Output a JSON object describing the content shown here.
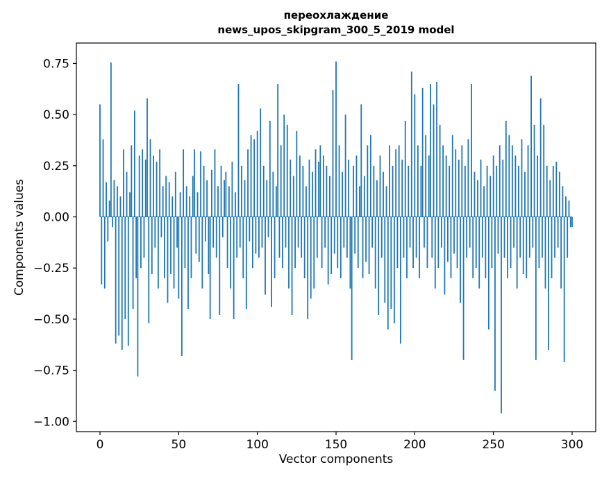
{
  "figure": {
    "title_line1": "переохлаждение",
    "title_line2": "news_upos_skipgram_300_5_2019 model",
    "xlabel": "Vector components",
    "ylabel": "Components values"
  },
  "chart_data": {
    "type": "bar",
    "title": "переохлаждение\nnews_upos_skipgram_300_5_2019 model",
    "xlabel": "Vector components",
    "ylabel": "Components values",
    "legend": "none",
    "grid": false,
    "bar_color": "#1f77b4",
    "axis_color": "#000000",
    "x_start": 0,
    "x_step": 1,
    "xlim": [
      -15,
      315
    ],
    "ylim": [
      -1.05,
      0.85
    ],
    "x_ticks": [
      0,
      50,
      100,
      150,
      200,
      250,
      300
    ],
    "y_ticks": [
      0.75,
      0.5,
      0.25,
      0,
      -0.25,
      -0.5,
      -0.75,
      -1.0
    ],
    "x_tick_labels": [
      "0",
      "50",
      "100",
      "150",
      "200",
      "250",
      "300"
    ],
    "y_tick_labels": [
      "0.75",
      "0.50",
      "0.25",
      "0.00",
      "−0.25",
      "−0.50",
      "−0.75",
      "−1.00"
    ],
    "values": [
      0.55,
      -0.33,
      0.38,
      -0.35,
      0.17,
      -0.12,
      0.08,
      0.755,
      -0.05,
      0.18,
      -0.62,
      0.15,
      -0.58,
      0.1,
      -0.65,
      0.33,
      -0.5,
      0.22,
      -0.63,
      0.12,
      0.35,
      -0.45,
      0.52,
      -0.3,
      -0.78,
      0.3,
      -0.25,
      0.33,
      -0.2,
      0.28,
      0.58,
      -0.52,
      0.38,
      -0.28,
      0.3,
      -0.15,
      0.27,
      -0.35,
      0.33,
      -0.1,
      0.15,
      -0.3,
      0.2,
      -0.42,
      0.17,
      -0.28,
      0.1,
      -0.35,
      0.22,
      -0.15,
      -0.4,
      0.12,
      -0.68,
      0.33,
      -0.25,
      0.15,
      -0.45,
      0.1,
      -0.3,
      0.2,
      0.33,
      -0.18,
      0.12,
      -0.22,
      0.32,
      -0.35,
      0.25,
      -0.12,
      0.18,
      -0.28,
      -0.5,
      0.23,
      -0.15,
      0.33,
      -0.2,
      0.15,
      -0.48,
      0.25,
      -0.1,
      0.18,
      0.22,
      -0.25,
      0.15,
      -0.35,
      0.27,
      -0.5,
      0.12,
      -0.2,
      0.65,
      -0.15,
      0.25,
      -0.3,
      0.18,
      -0.45,
      0.33,
      -0.12,
      0.4,
      -0.25,
      0.38,
      -0.18,
      0.42,
      -0.2,
      0.53,
      -0.15,
      0.25,
      -0.38,
      0.18,
      -0.1,
      0.47,
      -0.44,
      0.22,
      -0.3,
      0.15,
      0.65,
      -0.2,
      0.35,
      -0.25,
      0.5,
      -0.15,
      0.45,
      -0.35,
      0.28,
      -0.48,
      0.2,
      -0.25,
      0.42,
      -0.15,
      0.3,
      -0.2,
      0.25,
      -0.3,
      0.15,
      -0.5,
      0.28,
      -0.4,
      0.22,
      -0.35,
      0.33,
      -0.2,
      0.27,
      0.35,
      -0.25,
      0.3,
      -0.15,
      0.25,
      -0.33,
      0.2,
      -0.28,
      0.62,
      -0.18,
      0.76,
      -0.25,
      0.35,
      -0.3,
      0.22,
      -0.15,
      0.5,
      -0.2,
      0.28,
      -0.35,
      -0.7,
      0.25,
      -0.18,
      0.3,
      -0.25,
      0.15,
      0.55,
      -0.3,
      0.2,
      -0.22,
      0.35,
      -0.28,
      0.4,
      -0.15,
      0.25,
      -0.35,
      0.18,
      -0.48,
      0.3,
      -0.2,
      0.22,
      -0.42,
      0.15,
      -0.55,
      0.35,
      -0.45,
      0.25,
      -0.52,
      0.33,
      -0.25,
      0.35,
      -0.62,
      0.28,
      -0.2,
      0.47,
      -0.3,
      0.25,
      -0.15,
      0.71,
      -0.25,
      0.6,
      -0.2,
      0.35,
      -0.3,
      0.25,
      0.63,
      -0.15,
      0.4,
      -0.25,
      0.3,
      0.65,
      -0.2,
      0.55,
      -0.35,
      0.66,
      -0.25,
      0.45,
      -0.15,
      0.35,
      -0.38,
      0.3,
      -0.22,
      0.25,
      -0.3,
      0.4,
      -0.18,
      0.33,
      -0.25,
      0.28,
      -0.42,
      0.35,
      -0.7,
      0.25,
      -0.2,
      0.38,
      -0.15,
      0.65,
      -0.3,
      0.22,
      -0.25,
      0.18,
      -0.35,
      0.28,
      -0.2,
      0.15,
      -0.3,
      0.25,
      -0.55,
      0.2,
      -0.25,
      0.3,
      -0.85,
      0.25,
      -0.18,
      0.35,
      -0.96,
      0.28,
      -0.2,
      0.47,
      -0.3,
      0.4,
      -0.25,
      0.35,
      -0.15,
      0.3,
      -0.35,
      0.25,
      -0.2,
      0.38,
      -0.28,
      0.22,
      -0.3,
      0.35,
      -0.2,
      0.69,
      -0.15,
      0.45,
      -0.7,
      0.3,
      -0.25,
      0.58,
      -0.2,
      0.45,
      -0.35,
      0.25,
      -0.65,
      0.18,
      -0.3,
      0.25,
      -0.2,
      0.27,
      -0.15,
      0.22,
      -0.35,
      0.15,
      -0.71,
      0.1,
      -0.2,
      0.08,
      -0.05,
      -0.05
    ]
  }
}
